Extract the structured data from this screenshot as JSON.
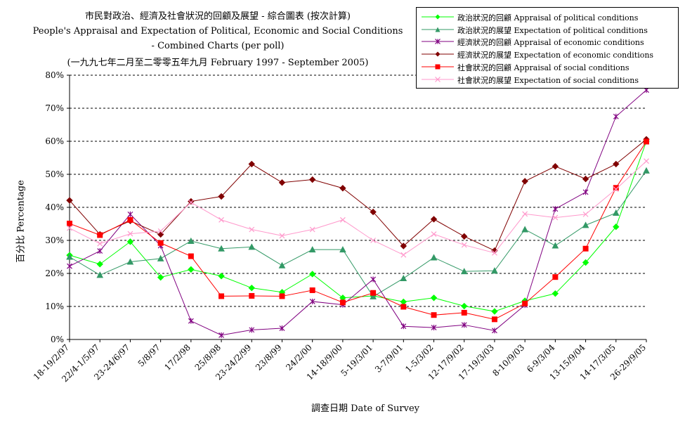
{
  "chart_data": {
    "type": "line",
    "title": [
      "市民對政治、經濟及社會狀況的回顧及展望 - 綜合圖表 (按次計算)",
      "People's Appraisal and Expectation of Political, Economic and Social Conditions",
      "- Combined Charts  (per poll)",
      "(一九九七年二月至二零零五年九月 February 1997 - September 2005)"
    ],
    "xlabel": "調查日期 Date of Survey",
    "ylabel": "百分比 Percentage",
    "ylim": [
      0,
      80
    ],
    "yticks": [
      "0%",
      "10%",
      "20%",
      "30%",
      "40%",
      "50%",
      "60%",
      "70%",
      "80%"
    ],
    "grid": "horizontal dashed",
    "legend_position": "top-right",
    "categories": [
      "18-19/2/97",
      "22/4-1/5/97",
      "23-24/6/97",
      "5/8/97",
      "17/2/98",
      "25/8/98",
      "23-24/2/99",
      "23/8/99",
      "24/2/00",
      "14-18/9/00",
      "5-19/3/01",
      "3-7/9/01",
      "1-5/3/02",
      "12-17/9/02",
      "17-19/3/03",
      "8-10/9/03",
      "6-9/3/04",
      "13-15/9/04",
      "14-17/3/05",
      "26-29/9/05"
    ],
    "series": [
      {
        "name": "政治狀況的回顧 Appraisal of political conditions",
        "color": "#00ff00",
        "marker": "diamond",
        "values": [
          25.5,
          22.8,
          29.6,
          18.8,
          21.2,
          19.2,
          15.6,
          14.3,
          19.8,
          12.6,
          13.2,
          11.4,
          12.6,
          10.1,
          8.5,
          11.7,
          13.9,
          23.3,
          34.1,
          60.0
        ]
      },
      {
        "name": "政治狀況的展望 Expectation of political conditions",
        "color": "#339966",
        "marker": "triangle",
        "values": [
          25.0,
          19.5,
          23.5,
          24.5,
          29.8,
          27.5,
          28.0,
          22.4,
          27.2,
          27.2,
          13.0,
          18.5,
          24.8,
          20.6,
          20.8,
          33.3,
          28.4,
          34.6,
          38.3,
          51.1
        ]
      },
      {
        "name": "經濟狀況的回顧 Appraisal of economic conditions",
        "color": "#800080",
        "marker": "star",
        "values": [
          22.2,
          26.8,
          37.9,
          28.4,
          5.6,
          1.3,
          2.9,
          3.4,
          11.5,
          10.5,
          18.2,
          4.0,
          3.6,
          4.4,
          2.7,
          10.4,
          39.5,
          44.6,
          67.5,
          75.5
        ]
      },
      {
        "name": "經濟狀況的展望 Expectation of economic conditions",
        "color": "#800000",
        "marker": "diamond",
        "values": [
          42.1,
          31.8,
          35.9,
          31.8,
          41.8,
          43.3,
          53.1,
          47.5,
          48.4,
          45.8,
          38.6,
          28.3,
          36.4,
          31.2,
          26.9,
          47.9,
          52.4,
          48.6,
          53.1,
          60.6
        ]
      },
      {
        "name": "社會狀況的回顧 Appraisal of social conditions",
        "color": "#ff0000",
        "marker": "square",
        "values": [
          35.1,
          31.6,
          36.2,
          29.2,
          25.2,
          13.1,
          13.2,
          13.1,
          14.9,
          11.2,
          14.1,
          9.9,
          7.4,
          8.1,
          6.1,
          10.9,
          18.9,
          27.5,
          45.9,
          59.9
        ]
      },
      {
        "name": "社會狀況的展望 Expectation of social conditions",
        "color": "#ff99cc",
        "marker": "x",
        "values": [
          33.7,
          29.0,
          32.0,
          32.8,
          41.5,
          36.2,
          33.3,
          31.4,
          33.3,
          36.2,
          30.0,
          25.6,
          31.9,
          28.6,
          26.2,
          38.0,
          36.9,
          37.9,
          45.5,
          54.0
        ]
      }
    ]
  }
}
